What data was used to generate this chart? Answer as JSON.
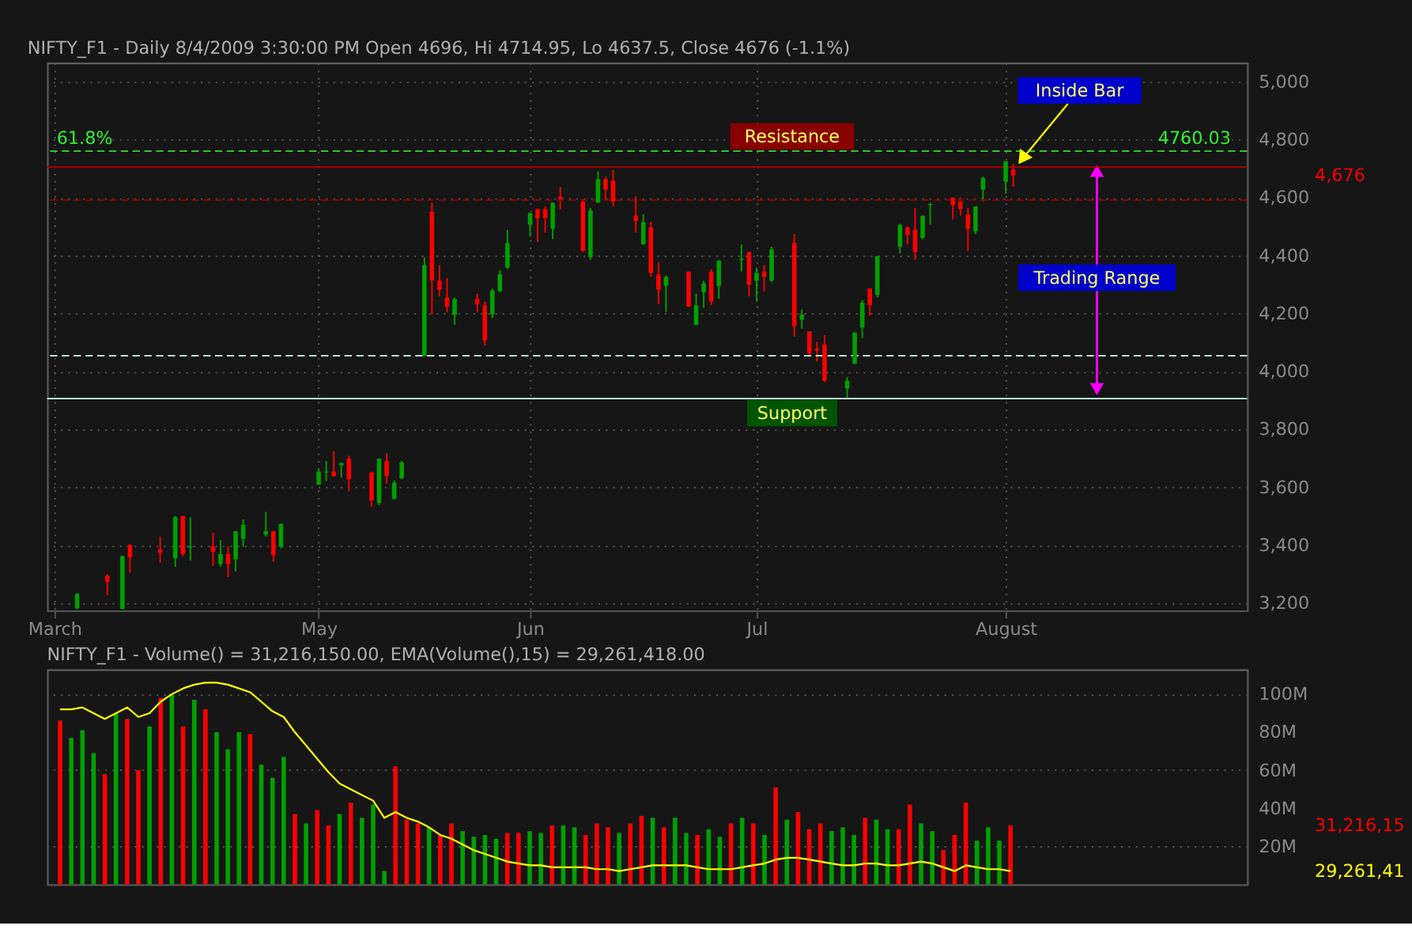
{
  "chart_data": [
    {
      "type": "candlestick",
      "title": "NIFTY_F1 - Daily 8/4/2009 3:30:00 PM Open 4696, Hi 4714.95, Lo 4637.5, Close 4676 (-1.1%)",
      "x": [
        "2009-04-02",
        "2009-04-06",
        "2009-04-08",
        "2009-04-09",
        "2009-04-13",
        "2009-04-15",
        "2009-04-16",
        "2009-04-17",
        "2009-04-20",
        "2009-04-21",
        "2009-04-22",
        "2009-04-23",
        "2009-04-24",
        "2009-04-27",
        "2009-04-28",
        "2009-04-29",
        "2009-05-04",
        "2009-05-05",
        "2009-05-06",
        "2009-05-07",
        "2009-05-08",
        "2009-05-11",
        "2009-05-12",
        "2009-05-13",
        "2009-05-14",
        "2009-05-15",
        "2009-05-18",
        "2009-05-19",
        "2009-05-20",
        "2009-05-21",
        "2009-05-22",
        "2009-05-25",
        "2009-05-26",
        "2009-05-27",
        "2009-05-28",
        "2009-05-29",
        "2009-06-01",
        "2009-06-02",
        "2009-06-03",
        "2009-06-04",
        "2009-06-05",
        "2009-06-08",
        "2009-06-09",
        "2009-06-10",
        "2009-06-11",
        "2009-06-12",
        "2009-06-15",
        "2009-06-16",
        "2009-06-17",
        "2009-06-18",
        "2009-06-19",
        "2009-06-22",
        "2009-06-23",
        "2009-06-24",
        "2009-06-25",
        "2009-06-26",
        "2009-06-29",
        "2009-06-30",
        "2009-07-01",
        "2009-07-02",
        "2009-07-03",
        "2009-07-06",
        "2009-07-07",
        "2009-07-08",
        "2009-07-09",
        "2009-07-10",
        "2009-07-13",
        "2009-07-14",
        "2009-07-15",
        "2009-07-16",
        "2009-07-17",
        "2009-07-20",
        "2009-07-21",
        "2009-07-22",
        "2009-07-23",
        "2009-07-24",
        "2009-07-27",
        "2009-07-28",
        "2009-07-29",
        "2009-07-30",
        "2009-07-31",
        "2009-08-03",
        "2009-08-04"
      ],
      "ohlc": [
        [
          3183,
          3235,
          3180,
          3232
        ],
        [
          3295,
          3300,
          3228,
          3273
        ],
        [
          3180,
          3365,
          3180,
          3362
        ],
        [
          3401,
          3404,
          3305,
          3359
        ],
        [
          3385,
          3430,
          3340,
          3374
        ],
        [
          3355,
          3501,
          3325,
          3497
        ],
        [
          3501,
          3501,
          3362,
          3370
        ],
        [
          3392,
          3497,
          3347,
          3397
        ],
        [
          3397,
          3444,
          3329,
          3377
        ],
        [
          3335,
          3418,
          3325,
          3370
        ],
        [
          3370,
          3397,
          3291,
          3335
        ],
        [
          3352,
          3449,
          3310,
          3449
        ],
        [
          3422,
          3489,
          3395,
          3471
        ],
        [
          3437,
          3515,
          3430,
          3449
        ],
        [
          3449,
          3449,
          3344,
          3365
        ],
        [
          3395,
          3474,
          3389,
          3474
        ],
        [
          3609,
          3666,
          3609,
          3654
        ],
        [
          3651,
          3691,
          3621,
          3654
        ],
        [
          3654,
          3725,
          3636,
          3639
        ],
        [
          3676,
          3684,
          3634,
          3684
        ],
        [
          3699,
          3709,
          3586,
          3628
        ],
        [
          3651,
          3654,
          3533,
          3554
        ],
        [
          3546,
          3699,
          3539,
          3699
        ],
        [
          3691,
          3717,
          3613,
          3639
        ],
        [
          3561,
          3624,
          3557,
          3616
        ],
        [
          3631,
          3691,
          3628,
          3687
        ],
        [
          4053,
          4394,
          4053,
          4367
        ],
        [
          4551,
          4583,
          4196,
          4314
        ],
        [
          4314,
          4367,
          4259,
          4282
        ],
        [
          4255,
          4322,
          4205,
          4223
        ],
        [
          4195,
          4255,
          4160,
          4250
        ],
        [
          4250,
          4268,
          4205,
          4232
        ],
        [
          4228,
          4241,
          4089,
          4107
        ],
        [
          4196,
          4286,
          4183,
          4279
        ],
        [
          4277,
          4349,
          4273,
          4335
        ],
        [
          4358,
          4488,
          4353,
          4443
        ],
        [
          4506,
          4546,
          4465,
          4546
        ],
        [
          4560,
          4560,
          4447,
          4528
        ],
        [
          4560,
          4569,
          4479,
          4528
        ],
        [
          4492,
          4582,
          4456,
          4582
        ],
        [
          4603,
          4636,
          4560,
          4595
        ],
        [
          4586,
          4595,
          4412,
          4416
        ],
        [
          4394,
          4564,
          4385,
          4555
        ],
        [
          4582,
          4690,
          4582,
          4663
        ],
        [
          4663,
          4672,
          4591,
          4627
        ],
        [
          4658,
          4694,
          4569,
          4586
        ],
        [
          4537,
          4604,
          4479,
          4519
        ],
        [
          4438,
          4542,
          4438,
          4515
        ],
        [
          4497,
          4515,
          4326,
          4340
        ],
        [
          4335,
          4376,
          4232,
          4282
        ],
        [
          4295,
          4331,
          4205,
          4326
        ],
        [
          4344,
          4344,
          4223,
          4223
        ],
        [
          4160,
          4268,
          4160,
          4228
        ],
        [
          4273,
          4313,
          4219,
          4304
        ],
        [
          4344,
          4353,
          4228,
          4241
        ],
        [
          4295,
          4383,
          4250,
          4383
        ],
        [
          4385,
          4438,
          4344,
          4389
        ],
        [
          4412,
          4412,
          4259,
          4299
        ],
        [
          4313,
          4358,
          4241,
          4340
        ],
        [
          4344,
          4367,
          4277,
          4326
        ],
        [
          4313,
          4430,
          4308,
          4421
        ],
        [
          4443,
          4474,
          4120,
          4156
        ],
        [
          4178,
          4214,
          4147,
          4196
        ],
        [
          4138,
          4138,
          4053,
          4062
        ],
        [
          4078,
          4102,
          4035,
          4072
        ],
        [
          4093,
          4125,
          3963,
          3968
        ],
        [
          3941,
          3981,
          3908,
          3968
        ],
        [
          4026,
          4134,
          4026,
          4134
        ],
        [
          4151,
          4246,
          4114,
          4237
        ],
        [
          4286,
          4286,
          4192,
          4228
        ],
        [
          4264,
          4398,
          4255,
          4398
        ],
        [
          4430,
          4510,
          4407,
          4506
        ],
        [
          4497,
          4501,
          4438,
          4470
        ],
        [
          4489,
          4564,
          4385,
          4412
        ],
        [
          4461,
          4537,
          4456,
          4537
        ],
        [
          4573,
          4582,
          4506,
          4577
        ],
        [
          4600,
          4600,
          4524,
          4573
        ],
        [
          4586,
          4600,
          4537,
          4560
        ],
        [
          4542,
          4564,
          4415,
          4492
        ],
        [
          4483,
          4569,
          4474,
          4569
        ],
        [
          4627,
          4672,
          4586,
          4667
        ],
        [
          4655,
          4725,
          4613,
          4725
        ],
        [
          4696,
          4714.95,
          4637.5,
          4676
        ]
      ],
      "colors": [
        "#00a000",
        "#ff0000",
        "#00a000",
        "#ff0000",
        "#ff0000",
        "#00a000",
        "#ff0000",
        "#00a000",
        "#ff0000",
        "#00a000",
        "#ff0000",
        "#00a000",
        "#00a000",
        "#00a000",
        "#ff0000",
        "#00a000",
        "#00a000",
        "#00a000",
        "#ff0000",
        "#00a000",
        "#ff0000",
        "#ff0000",
        "#00a000",
        "#ff0000",
        "#00a000",
        "#00a000",
        "#00a000",
        "#ff0000",
        "#ff0000",
        "#ff0000",
        "#00a000",
        "#ff0000",
        "#ff0000",
        "#00a000",
        "#00a000",
        "#00a000",
        "#00a000",
        "#ff0000",
        "#ff0000",
        "#00a000",
        "#ff0000",
        "#ff0000",
        "#00a000",
        "#00a000",
        "#ff0000",
        "#ff0000",
        "#ff0000",
        "#00a000",
        "#ff0000",
        "#ff0000",
        "#00a000",
        "#ff0000",
        "#00a000",
        "#00a000",
        "#ff0000",
        "#00a000",
        "#00a000",
        "#ff0000",
        "#00a000",
        "#ff0000",
        "#00a000",
        "#ff0000",
        "#00a000",
        "#ff0000",
        "#ff0000",
        "#ff0000",
        "#00a000",
        "#00a000",
        "#00a000",
        "#ff0000",
        "#00a000",
        "#00a000",
        "#ff0000",
        "#ff0000",
        "#00a000",
        "#00a000",
        "#ff0000",
        "#ff0000",
        "#ff0000",
        "#00a000",
        "#00a000",
        "#00a000",
        "#ff0000"
      ],
      "xlim": [
        "2009-03-30",
        "2009-09-03"
      ],
      "xticks": [
        {
          "value": "2009-03-30",
          "label": "March"
        },
        {
          "value": "2009-05-04",
          "label": "May"
        },
        {
          "value": "2009-06-01",
          "label": "Jun"
        },
        {
          "value": "2009-07-01",
          "label": "Jul"
        },
        {
          "value": "2009-08-03",
          "label": "August"
        }
      ],
      "ylim": [
        3175,
        5065
      ],
      "yticks": [
        {
          "value": 3200,
          "label": "3,200"
        },
        {
          "value": 3400,
          "label": "3,400"
        },
        {
          "value": 3600,
          "label": "3,600"
        },
        {
          "value": 3800,
          "label": "3,800"
        },
        {
          "value": 4000,
          "label": "4,000"
        },
        {
          "value": 4200,
          "label": "4,200"
        },
        {
          "value": 4400,
          "label": "4,400"
        },
        {
          "value": 4600,
          "label": "4,600"
        },
        {
          "value": 4800,
          "label": "4,800"
        },
        {
          "value": 5000,
          "label": "5,000"
        }
      ],
      "grid": true,
      "ref_lines": [
        {
          "axis": "y",
          "value": 4760.03,
          "color": "#33dd33",
          "line_style": "dashed"
        },
        {
          "axis": "y",
          "value": 4705,
          "color": "#aa0000",
          "line_style": "solid"
        },
        {
          "axis": "y",
          "value": 4591,
          "color": "#880000",
          "line_style": "dashed"
        },
        {
          "axis": "y",
          "value": 4054,
          "color": "#ccffee",
          "line_style": "dashed"
        },
        {
          "axis": "y",
          "value": 3906,
          "color": "#ccffee",
          "line_style": "solid"
        }
      ],
      "annotations": [
        {
          "text": "61.8%",
          "x": "2009-04-03",
          "y": 4760.03
        },
        {
          "text": "4760.03",
          "x": "2009-08-28",
          "y": 4760.03
        },
        "Resistance",
        "Support",
        {
          "text": "Inside Bar",
          "x": "2009-08-04",
          "y": 4714.95
        },
        "Trading Range",
        "4,676"
      ]
    },
    {
      "type": "bar",
      "title": "NIFTY_F1 - Volume() = 31,216,150.00, EMA(Volume(),15) = 29,261,418.00",
      "categories": [
        null,
        null,
        null,
        null,
        null,
        null,
        null,
        null,
        null,
        null,
        null,
        null,
        null,
        null,
        null,
        null,
        null,
        null,
        null,
        null,
        null,
        null,
        null,
        null,
        null,
        null,
        null,
        null,
        null,
        null,
        null,
        null,
        null,
        null,
        null,
        null,
        null,
        null,
        null,
        null,
        null,
        null,
        null,
        null,
        null,
        null,
        null,
        null,
        null,
        null,
        null,
        null,
        null,
        null,
        null,
        null,
        null,
        null,
        null,
        null,
        null,
        null,
        null,
        null,
        null,
        null,
        null,
        null,
        null,
        null,
        null,
        null,
        null,
        null,
        null,
        null,
        null,
        null,
        null,
        null,
        null,
        null,
        null,
        null,
        null,
        null,
        null,
        null,
        null,
        null,
        null,
        null,
        null,
        null,
        null,
        null,
        null,
        null,
        null,
        null,
        null,
        null,
        null,
        null,
        null,
        null
      ],
      "series": [
        {
          "type": "bar",
          "values": [
            86,
            77,
            81,
            69,
            58,
            90,
            87,
            60,
            83,
            98,
            100,
            83,
            97,
            92,
            80,
            71,
            80,
            79,
            63,
            56,
            67,
            37,
            32,
            39,
            31,
            37,
            43,
            35,
            42,
            7,
            62,
            34,
            32,
            30,
            26,
            32,
            28,
            25,
            26,
            24,
            27,
            27,
            28,
            27,
            31,
            31,
            30,
            26,
            32,
            30,
            27,
            32,
            36,
            35,
            30,
            35,
            27,
            26,
            29,
            25,
            32,
            35,
            32,
            26,
            51,
            34,
            38,
            29,
            32,
            28,
            30,
            26,
            35,
            34,
            29,
            29,
            42,
            32,
            28,
            18,
            26,
            43,
            23,
            30,
            23,
            31,
            null,
            null,
            null,
            null,
            null,
            null,
            null,
            null,
            null,
            null,
            null,
            null,
            null,
            null,
            null,
            null,
            null,
            null,
            null,
            null
          ],
          "colors": [
            "#ff0000",
            "#00a000",
            "#00a000",
            "#00a000",
            "#ff0000",
            "#00a000",
            "#ff0000",
            "#ff0000",
            "#00a000",
            "#ff0000",
            "#00a000",
            "#ff0000",
            "#00a000",
            "#ff0000",
            "#00a000",
            "#00a000",
            "#00a000",
            "#ff0000",
            "#00a000",
            "#00a000",
            "#00a000",
            "#ff0000",
            "#00a000",
            "#ff0000",
            "#ff0000",
            "#00a000",
            "#ff0000",
            "#00a000",
            "#00a000",
            "#00a000",
            "#ff0000",
            "#ff0000",
            "#ff0000",
            "#00a000",
            "#ff0000",
            "#ff0000",
            "#00a000",
            "#00a000",
            "#00a000",
            "#00a000",
            "#ff0000",
            "#ff0000",
            "#00a000",
            "#00a000",
            "#ff0000",
            "#00a000",
            "#00a000",
            "#ff0000",
            "#ff0000",
            "#ff0000",
            "#00a000",
            "#ff0000",
            "#ff0000",
            "#00a000",
            "#ff0000",
            "#00a000",
            "#00a000",
            "#ff0000",
            "#00a000",
            "#00a000",
            "#ff0000",
            "#00a000",
            "#ff0000",
            "#00a000",
            "#ff0000",
            "#00a000",
            "#ff0000",
            "#ff0000",
            "#ff0000",
            "#00a000",
            "#00a000",
            "#00a000",
            "#ff0000",
            "#00a000",
            "#00a000",
            "#ff0000",
            "#ff0000",
            "#00a000",
            "#00a000",
            "#ff0000",
            "#ff0000",
            "#ff0000",
            "#00a000",
            "#00a000",
            "#00a000",
            "#ff0000",
            null,
            null,
            null,
            null,
            null,
            null,
            null,
            null,
            null,
            null,
            null,
            null,
            null,
            null,
            null,
            null,
            null,
            null,
            null,
            null
          ]
        },
        {
          "type": "line",
          "color": "#ffff00",
          "values": [
            92,
            92,
            93,
            90,
            87,
            90,
            93,
            88,
            90,
            96,
            100,
            103,
            105,
            106,
            106,
            105,
            103,
            101,
            96,
            91,
            88,
            80,
            73,
            66,
            59,
            53,
            50,
            47,
            44,
            35,
            38,
            35,
            33,
            30,
            26,
            24,
            21,
            18,
            16,
            14,
            12,
            11,
            10,
            10,
            9,
            9,
            9,
            9,
            8,
            8,
            7,
            8,
            9,
            10,
            10,
            10,
            10,
            9,
            8,
            8,
            8,
            9,
            10,
            11,
            13,
            14,
            14,
            13,
            12,
            11,
            10,
            10,
            11,
            11,
            10,
            10,
            11,
            12,
            11,
            9,
            7,
            10,
            9,
            8,
            8,
            7,
            null,
            null,
            null,
            null,
            null,
            null,
            null,
            null,
            null,
            null,
            null,
            null,
            null,
            null,
            null,
            null,
            null,
            null,
            null,
            null
          ]
        }
      ],
      "ylim": [
        0,
        113
      ],
      "yticks": [
        {
          "value": 20,
          "label": "20M"
        },
        {
          "value": 40,
          "label": "40M"
        },
        {
          "value": 60,
          "label": "60M"
        },
        {
          "value": 80,
          "label": "80M"
        },
        {
          "value": 100,
          "label": "100M"
        }
      ],
      "grid": "y",
      "tick_labels": "y",
      "annotations": [
        "31,216,15",
        "29,261,41"
      ]
    }
  ]
}
